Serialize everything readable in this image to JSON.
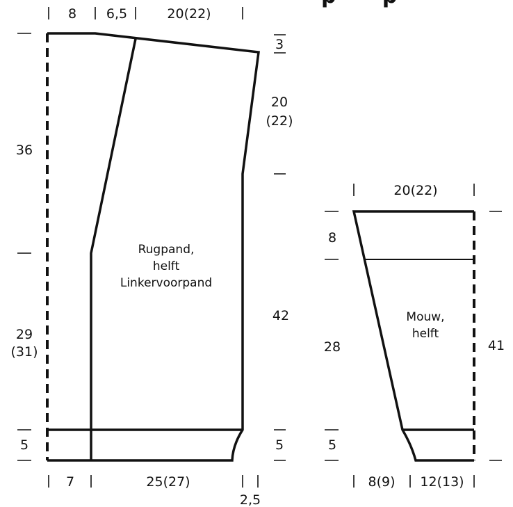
{
  "figure": {
    "heading_fragment": "p p",
    "ink_color": "#111111"
  },
  "body_piece": {
    "name_line1": "Rugpand,",
    "name_line2": "helft",
    "name_line3": "Linkervoorpand",
    "top_widths": [
      "8",
      "6,5",
      "20(22)"
    ],
    "right_shoulder_drop": "3",
    "armhole_depth": [
      "20",
      "(22)"
    ],
    "side_length": "42",
    "left_upper_length": "36",
    "left_lower_length": [
      "29",
      "(31)"
    ],
    "left_rib_length": "5",
    "right_rib_length": "5",
    "bottom_widths": [
      "7",
      "25(27)",
      "2,5"
    ]
  },
  "sleeve_piece": {
    "name_line1": "Mouw,",
    "name_line2": "helft",
    "top_width": "20(22)",
    "cap_depth": "8",
    "taper_length": "28",
    "total_length": "41",
    "rib_length": "5",
    "bottom_widths": [
      "8(9)",
      "12(13)"
    ]
  }
}
